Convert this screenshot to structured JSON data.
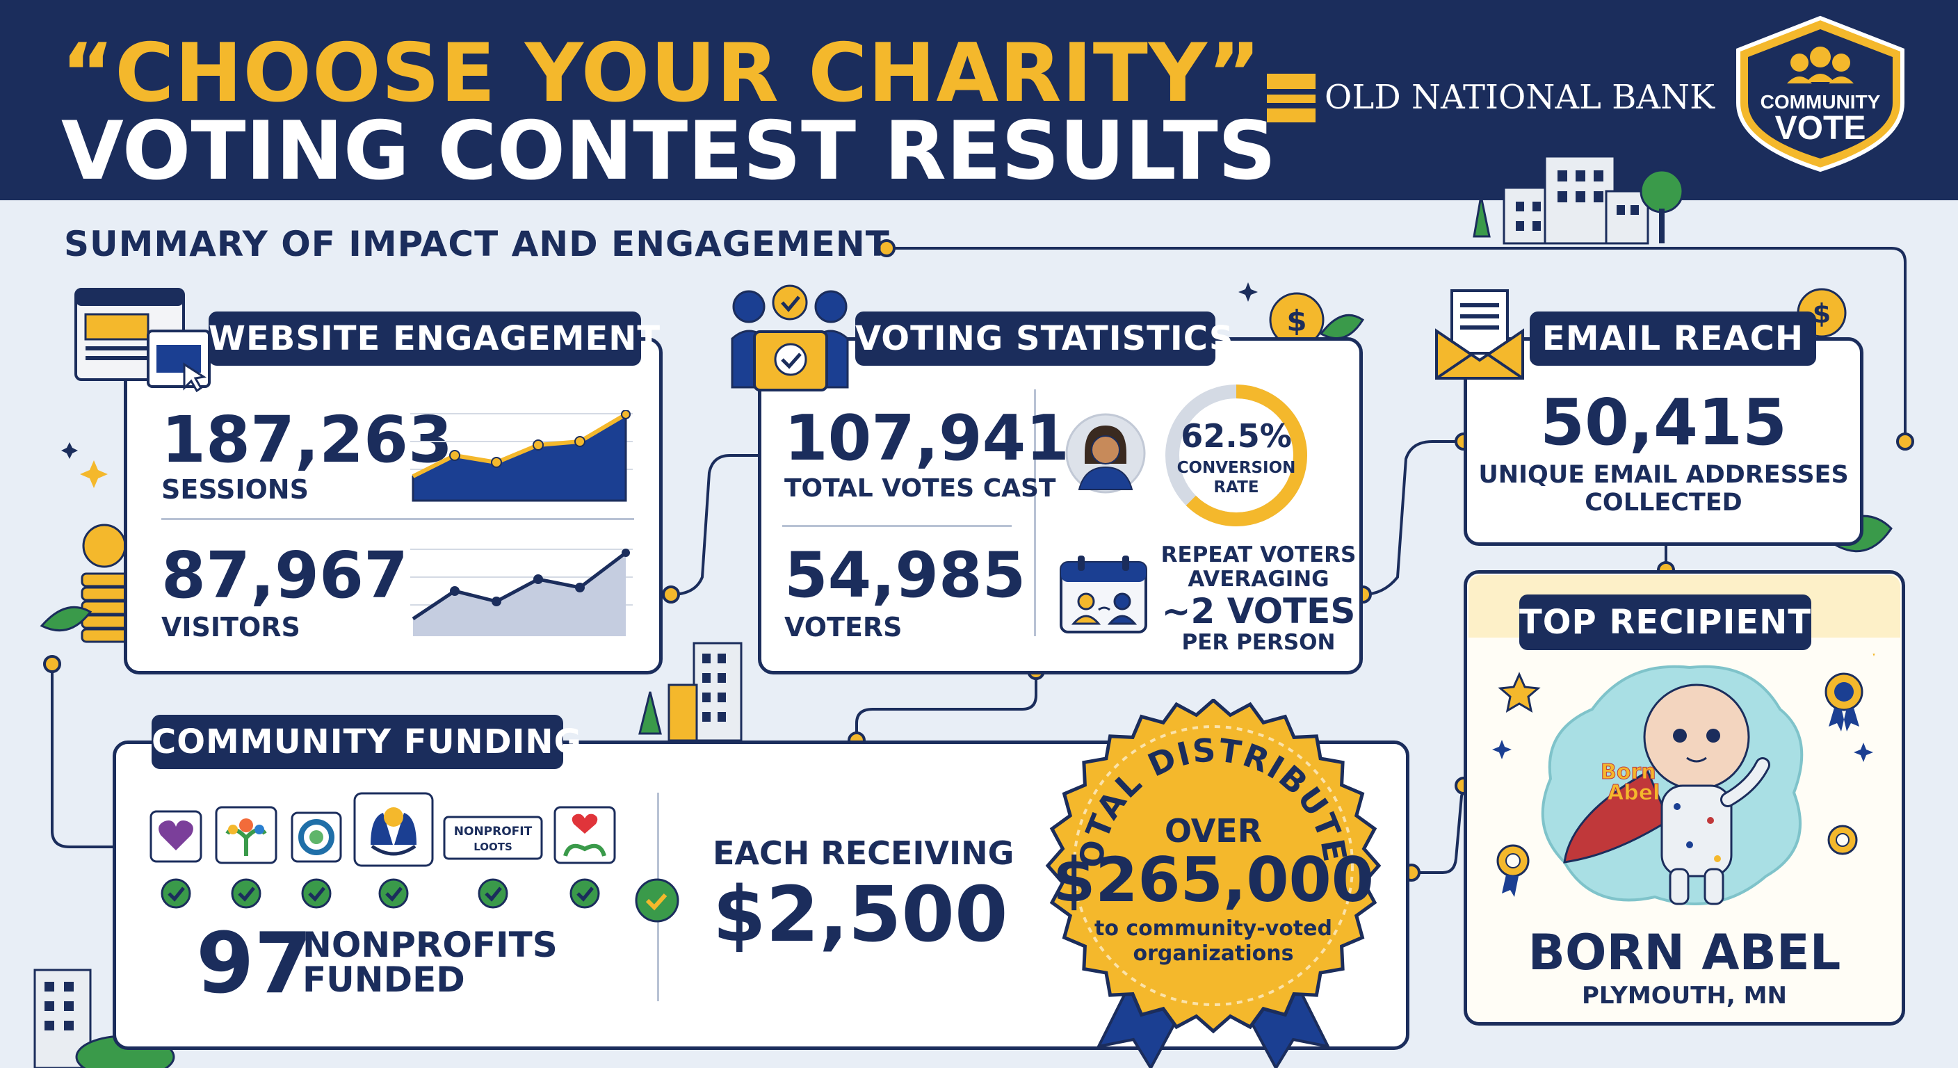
{
  "header": {
    "title_line1": "“CHOOSE YOUR CHARITY”",
    "title_line2": "VOTING CONTEST RESULTS",
    "bank_name": "OLD NATIONAL BANK",
    "badge_line1": "COMMUNITY",
    "badge_line2": "VOTE"
  },
  "summary_heading": "SUMMARY OF IMPACT AND ENGAGEMENT",
  "website": {
    "title": "WEBSITE ENGAGEMENT",
    "sessions_value": "187,263",
    "sessions_label": "SESSIONS",
    "visitors_value": "87,967",
    "visitors_label": "VISITORS"
  },
  "voting": {
    "title": "VOTING STATISTICS",
    "total_votes_value": "107,941",
    "total_votes_label": "TOTAL VOTES CAST",
    "voters_value": "54,985",
    "voters_label": "VOTERS",
    "conversion_value": "62.5%",
    "conversion_label_1": "CONVERSION",
    "conversion_label_2": "RATE",
    "conversion_fraction": 0.625,
    "repeat_line1": "REPEAT VOTERS",
    "repeat_line2": "AVERAGING",
    "repeat_line3": "~2 VOTES",
    "repeat_line4": "PER PERSON"
  },
  "email": {
    "title": "EMAIL REACH",
    "value": "50,415",
    "label_1": "UNIQUE EMAIL ADDRESSES",
    "label_2": "COLLECTED"
  },
  "funding": {
    "title": "COMMUNITY FUNDING",
    "logo_text_1": "NONPROFIT",
    "logo_text_2": "LOOTS",
    "count_value": "97",
    "count_label_1": "NONPROFITS",
    "count_label_2": "FUNDED",
    "each_label": "EACH RECEIVING",
    "each_value": "$2,500"
  },
  "total": {
    "arc_text": "TOTAL DISTRIBUTED",
    "over": "OVER",
    "amount": "$265,000",
    "sub_1": "to community-voted",
    "sub_2": "organizations"
  },
  "recipient": {
    "title": "TOP RECIPIENT",
    "art_text_1": "Born",
    "art_text_2": "Abel",
    "name": "BORN ABEL",
    "location": "PLYMOUTH, MN"
  },
  "colors": {
    "navy": "#1b2d5c",
    "gold": "#f4b82c",
    "background": "#e8eef6",
    "green_check": "#2f9a4a"
  }
}
